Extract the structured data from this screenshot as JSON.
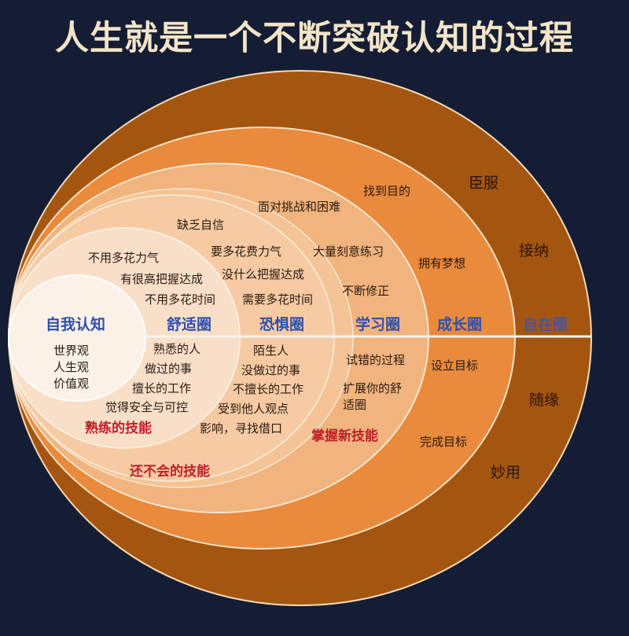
{
  "title": "人生就是一个不断突破认知的过程",
  "colors": {
    "background": "#141d33",
    "ring_outer": "#a4550f",
    "ring_growth": "#e98a3c",
    "ring_learning": "#f1b47e",
    "ring_fear": "#f6cba4",
    "ring_comfort": "#f9dfc8",
    "ring_self": "#fcf1e6",
    "zone_label": "#2f4fae",
    "skill_label": "#c0202a"
  },
  "zones": {
    "self": {
      "label": "自我认知",
      "lines": [
        "世界观",
        "人生观",
        "价值观"
      ]
    },
    "comfort": {
      "label": "舒适圈",
      "top": [
        "不用多花力气",
        "有很高把握达成",
        "不用多花时间"
      ],
      "bottom": [
        "熟悉的人",
        "做过的事",
        "擅长的工作",
        "觉得安全与可控"
      ],
      "skill": "熟练的技能"
    },
    "fear": {
      "label": "恐惧圈",
      "top": [
        "缺乏自信",
        "要多花费力气",
        "没什么把握达成",
        "需要多花时间"
      ],
      "bottom": [
        "陌生人",
        "没做过的事",
        "不擅长的工作",
        "受到他人观点",
        "影响，寻找借口"
      ],
      "skill": "还不会的技能"
    },
    "learning": {
      "label": "学习圈",
      "top": [
        "面对挑战和困难",
        "大量刻意练习",
        "不断修正"
      ],
      "bottom": [
        "试错的过程",
        "扩展你的舒",
        "适圈"
      ],
      "skill": "掌握新技能"
    },
    "growth": {
      "label": "成长圈",
      "top": [
        "找到目的",
        "拥有梦想"
      ],
      "bottom": [
        "设立目标",
        "完成目标"
      ]
    },
    "freedom": {
      "label": "自在圈",
      "top": [
        "臣服",
        "接纳"
      ],
      "bottom": [
        "随缘",
        "妙用"
      ]
    }
  }
}
